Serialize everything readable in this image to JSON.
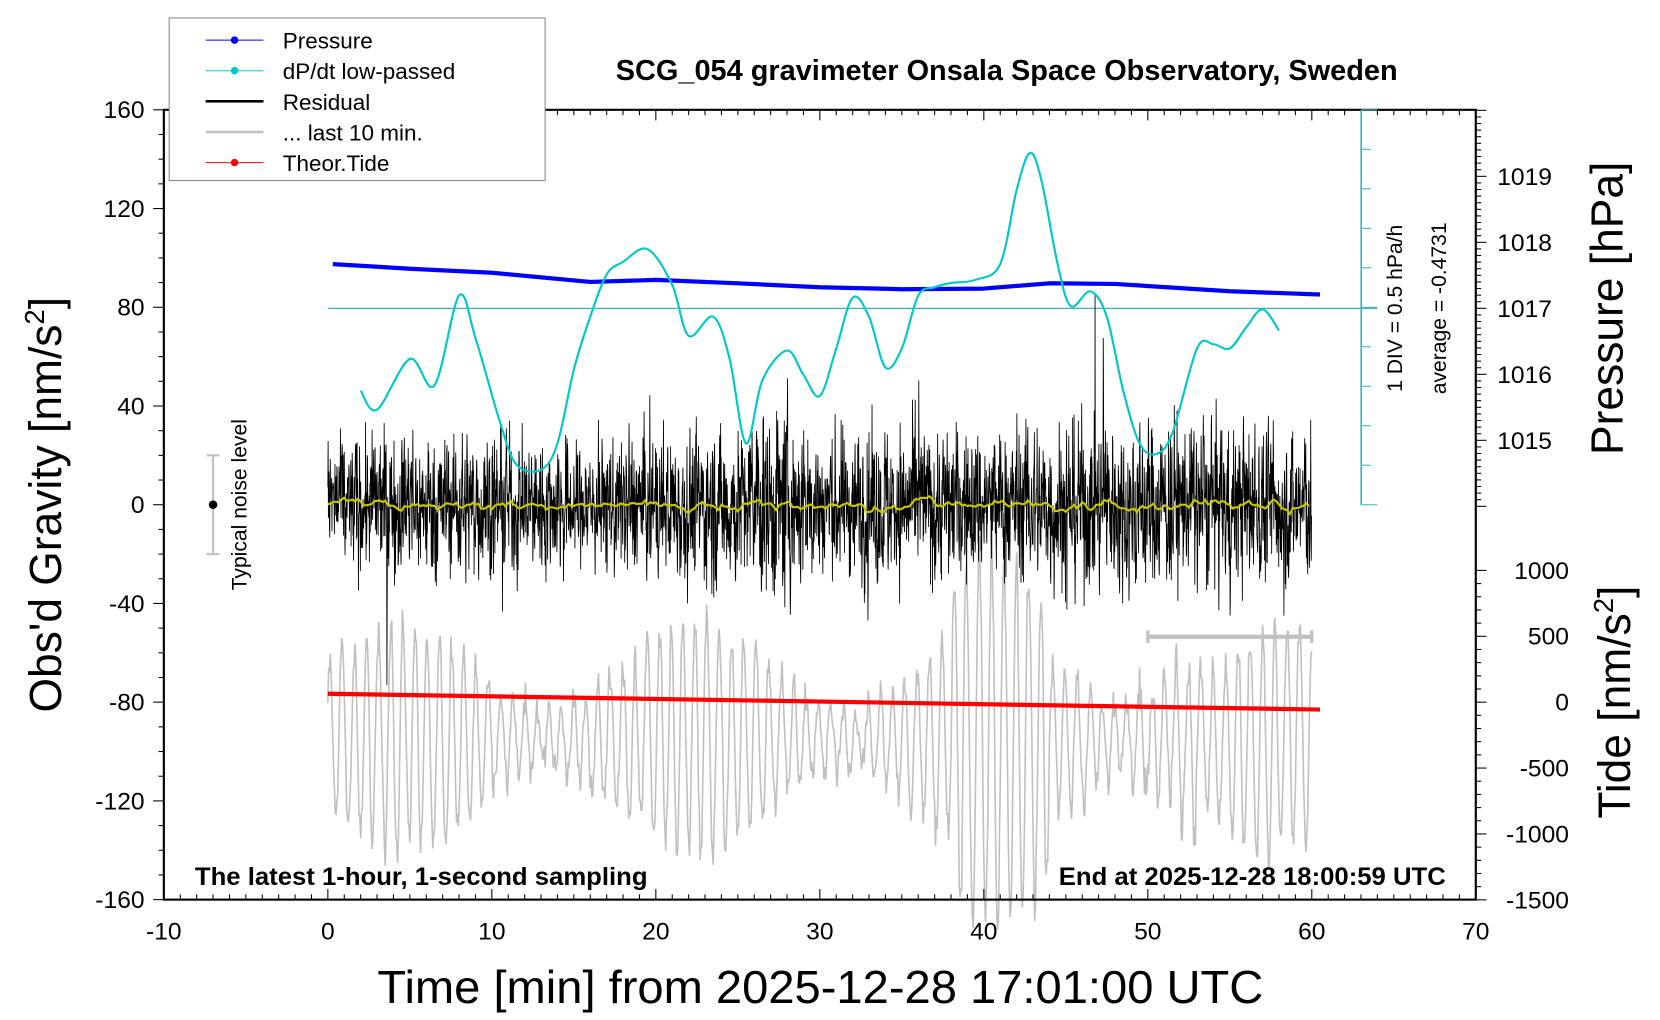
{
  "chart_data": {
    "type": "line",
    "title": "SCG_054 gravimeter Onsala Space Observatory, Sweden",
    "xlabel": "Time [min] from 2025-12-28 17:01:00 UTC",
    "ylabel_left": "Obs'd Gravity [nm/s",
    "ylabel_left_sup": "2",
    "ylabel_left_close": "]",
    "ylabel_right_top": "Pressure [hPa]",
    "ylabel_right_bottom": "Tide [nm/s",
    "ylabel_right_bottom_sup": "2",
    "ylabel_right_bottom_close": "]",
    "xlim": [
      -10,
      70
    ],
    "ylim_left": [
      -160,
      160
    ],
    "ylim_pressure": [
      1014,
      1020
    ],
    "ylim_tide": [
      -1500,
      1000
    ],
    "x_ticks": [
      "-10",
      "0",
      "10",
      "20",
      "30",
      "40",
      "50",
      "60",
      "70"
    ],
    "y_left_ticks": [
      "160",
      "120",
      "80",
      "40",
      "0",
      "-40",
      "-80",
      "-120",
      "-160"
    ],
    "pressure_ticks": [
      "1019",
      "1018",
      "1017",
      "1016",
      "1015"
    ],
    "tide_ticks": [
      "1000",
      "500",
      "0",
      "-500",
      "-1000",
      "-1500"
    ],
    "annotations": {
      "bottom_left": "The latest 1-hour, 1-second sampling",
      "bottom_right": "End at 2025-12-28 18:00:59 UTC",
      "noise_label": "Typical noise level",
      "div_label": "1 DIV = 0.5 hPa/h",
      "average_label": "average = -0.4731"
    },
    "legend": {
      "placement": "top-left",
      "entries": [
        {
          "label": "Pressure",
          "color": "#0000ff",
          "marker": true
        },
        {
          "label": "dP/dt low-passed",
          "color": "#00c8c8",
          "marker": true
        },
        {
          "label": "Residual",
          "color": "#000000",
          "marker": false
        },
        {
          "label": "... last 10 min.",
          "color": "#c0c0c0",
          "marker": false
        },
        {
          "label": "Theor.Tide",
          "color": "#ff0000",
          "marker": true
        }
      ]
    },
    "noise_level": {
      "x": -7,
      "center": 0,
      "half_range": 20
    },
    "dpdt": {
      "unit": "hPa/h",
      "average": -0.4731,
      "div": 0.5,
      "x": [
        2,
        3,
        5,
        6.5,
        8,
        9,
        10.5,
        11.5,
        13,
        14,
        15,
        16,
        17,
        18,
        19.5,
        21,
        22,
        23.5,
        24.5,
        25.5,
        26.5,
        28,
        29,
        30,
        31,
        32,
        33,
        34,
        35,
        36,
        37,
        38,
        39.5,
        41,
        42,
        42.8,
        43.5,
        44.5,
        45.3,
        46.5,
        47.5,
        48.5,
        49.5,
        50.5,
        51.5,
        53,
        54,
        55,
        56,
        57,
        58
      ],
      "values": [
        -1.516,
        -1.756,
        -1.115,
        -1.449,
        -0.313,
        -0.847,
        -1.917,
        -2.452,
        -2.518,
        -2.184,
        -1.249,
        -0.58,
        -0.045,
        0.115,
        0.276,
        -0.179,
        -0.821,
        -0.58,
        -1.115,
        -2.184,
        -1.382,
        -1.008,
        -1.315,
        -1.583,
        -0.981,
        -0.339,
        -0.58,
        -1.222,
        -0.981,
        -0.313,
        -0.206,
        -0.152,
        -0.112,
        0.088,
        1.024,
        1.492,
        1.158,
        0.088,
        -0.446,
        -0.259,
        -0.58,
        -1.516,
        -2.184,
        -2.318,
        -2.051,
        -0.981,
        -0.928,
        -0.981,
        -0.714,
        -0.486,
        -0.754
      ]
    },
    "pressure": {
      "x": [
        0.3,
        5,
        10,
        16,
        20,
        25,
        30,
        35,
        40,
        44,
        48,
        55,
        60.5
      ],
      "values": [
        1017.67,
        1017.6,
        1017.54,
        1017.4,
        1017.43,
        1017.38,
        1017.32,
        1017.29,
        1017.3,
        1017.38,
        1017.37,
        1017.26,
        1017.21
      ]
    },
    "tide": {
      "x": [
        0,
        60.5
      ],
      "values": [
        64,
        -56
      ]
    },
    "residual": {
      "sampling_s": 1,
      "duration_min": 60,
      "mean": 0,
      "envelope_x": [
        0,
        5,
        10,
        15,
        20,
        25,
        27,
        30,
        35,
        40,
        45,
        50,
        55,
        60
      ],
      "envelope_amp": [
        22,
        25,
        24,
        22,
        25,
        28,
        35,
        26,
        27,
        26,
        30,
        30,
        28,
        28
      ]
    },
    "last10": {
      "x_range": [
        50,
        60
      ],
      "center_tide_units": -280
    }
  }
}
